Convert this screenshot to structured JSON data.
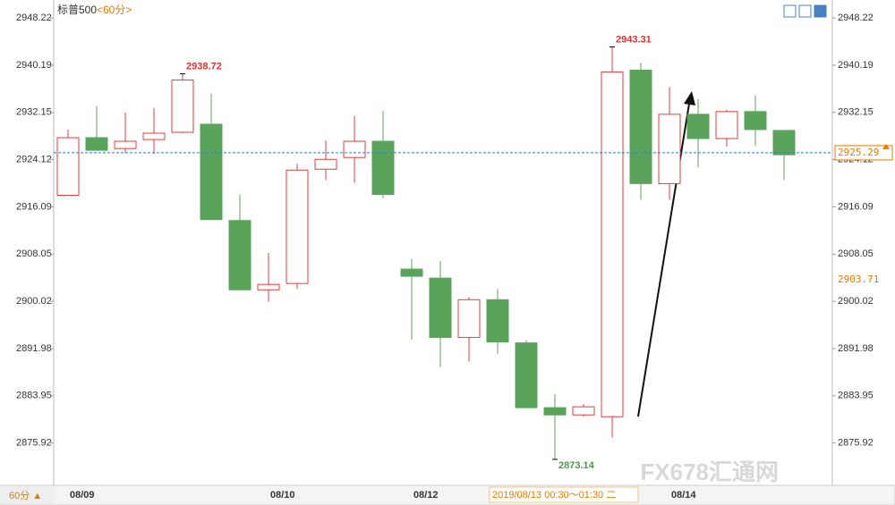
{
  "chart_data": {
    "type": "candlestick",
    "title": "标普500",
    "period": "<60分>",
    "open": [
      2918.06,
      2927.86,
      2926.02,
      2927.55,
      2928.78,
      2930.15,
      2913.77,
      2901.98,
      2903.06,
      2922.5,
      2924.49,
      2927.25,
      2905.5,
      2903.97,
      2893.87,
      2900.3,
      2892.95,
      2881.93,
      2880.7,
      2880.4,
      2939.34,
      2920.05,
      2931.84,
      2927.71,
      2932.3,
      2929.09
    ],
    "high": [
      2929.24,
      2933.22,
      2932.15,
      2932.91,
      2938.72,
      2935.36,
      2918.21,
      2908.26,
      2923.42,
      2927.4,
      2931.53,
      2932.45,
      2907.19,
      2906.88,
      2900.76,
      2902.14,
      2893.41,
      2884.22,
      2882.54,
      2943.31,
      2940.57,
      2936.43,
      2934.44,
      2932.6,
      2935.05,
      2929.09
    ],
    "low": [
      2918.06,
      2925.72,
      2925.26,
      2925.1,
      2928.62,
      2913.93,
      2901.98,
      2900.0,
      2902.14,
      2920.66,
      2920.2,
      2917.6,
      2893.5,
      2888.82,
      2889.74,
      2891.12,
      2881.93,
      2873.14,
      2880.4,
      2876.88,
      2917.29,
      2917.29,
      2922.81,
      2926.33,
      2926.48,
      2920.66
    ],
    "close": [
      2927.86,
      2925.72,
      2927.25,
      2928.62,
      2937.66,
      2913.93,
      2901.98,
      2902.9,
      2922.35,
      2924.18,
      2927.25,
      2918.21,
      2904.28,
      2893.87,
      2900.3,
      2893.11,
      2881.93,
      2880.7,
      2882.08,
      2939.03,
      2920.05,
      2931.84,
      2927.71,
      2932.3,
      2929.24,
      2924.95
    ],
    "categories": [
      "08/09",
      null,
      null,
      null,
      null,
      null,
      null,
      "08/10",
      null,
      null,
      null,
      null,
      "08/12",
      null,
      null,
      null,
      null,
      null,
      null,
      null,
      null,
      "08/14",
      null,
      null,
      null,
      null
    ],
    "up_color": "#e03c3c",
    "down_color": "#5aa35a",
    "ylim": [
      2868.72,
      2951.28
    ],
    "yticks": [
      2948.22,
      2940.19,
      2932.15,
      2924.12,
      2916.09,
      2908.05,
      2900.02,
      2891.98,
      2883.95,
      2875.92
    ],
    "marked_extremes": {
      "high": [
        4,
        19
      ],
      "low": [
        17
      ]
    },
    "last_price": 2925.29,
    "cursor_price": 2903.71,
    "cursor_time": "2019/08/13 00:30～01:30 二",
    "period_button": "60分 ▲",
    "watermark": "FX678汇通网"
  }
}
